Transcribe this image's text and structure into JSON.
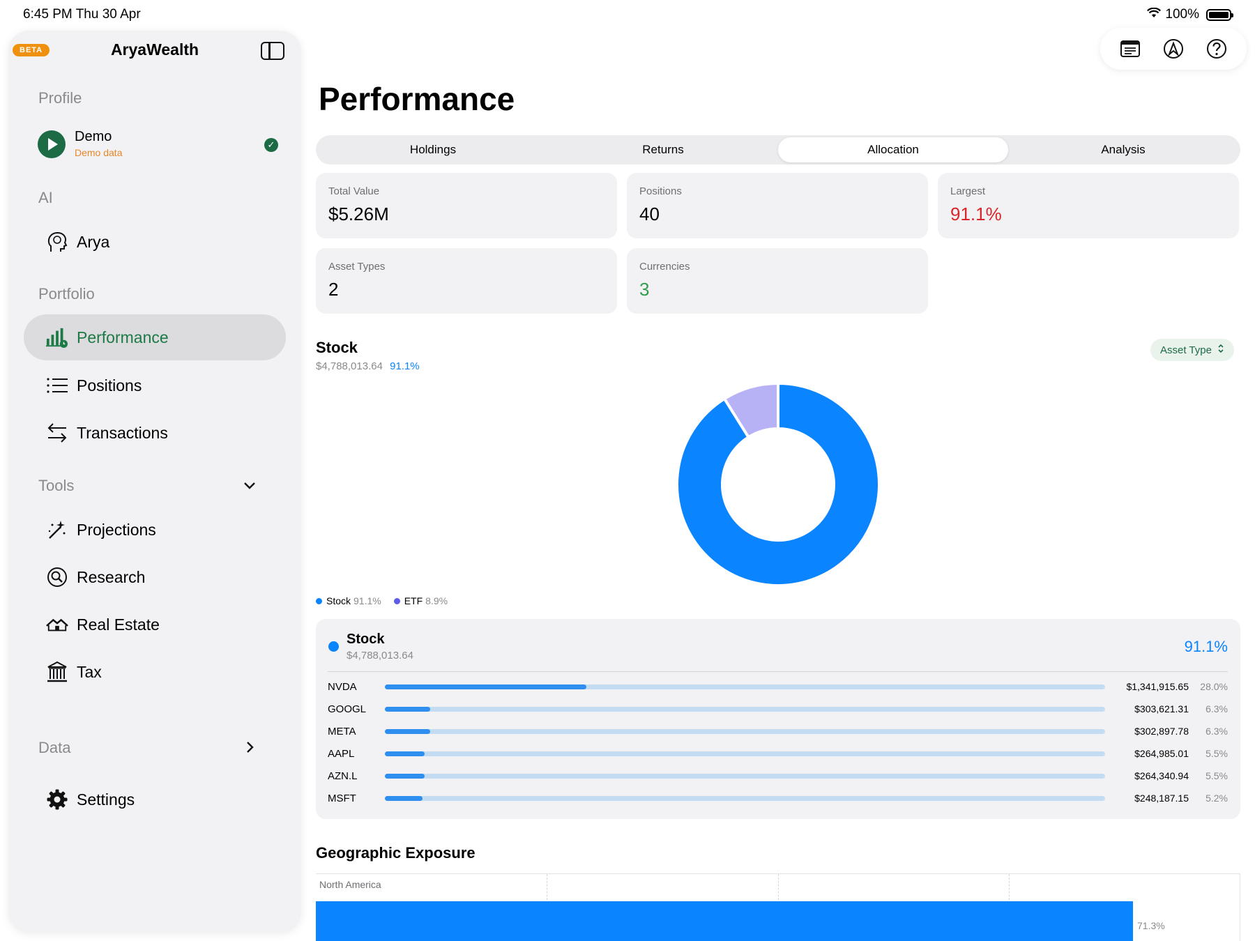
{
  "status_bar": {
    "time": "6:45 PM  Thu 30 Apr",
    "battery": "100%"
  },
  "sidebar": {
    "beta_badge": "BETA",
    "app_title": "AryaWealth",
    "sections": {
      "profile": "Profile",
      "ai": "AI",
      "portfolio": "Portfolio",
      "tools": "Tools",
      "data": "Data"
    },
    "profile": {
      "name": "Demo",
      "subtitle": "Demo data"
    },
    "ai_items": [
      {
        "label": "Arya",
        "icon": "brain-head-icon"
      }
    ],
    "portfolio_items": [
      {
        "label": "Performance",
        "icon": "chart-bars-icon",
        "active": true
      },
      {
        "label": "Positions",
        "icon": "list-icon"
      },
      {
        "label": "Transactions",
        "icon": "arrows-swap-icon"
      }
    ],
    "tool_items": [
      {
        "label": "Projections",
        "icon": "magic-wand-icon"
      },
      {
        "label": "Research",
        "icon": "magnifier-icon"
      },
      {
        "label": "Real Estate",
        "icon": "houses-icon"
      },
      {
        "label": "Tax",
        "icon": "bank-icon"
      }
    ],
    "settings": {
      "label": "Settings",
      "icon": "gear-icon"
    }
  },
  "toolbar": {
    "icons": [
      "notes-icon",
      "compass-a-icon",
      "help-icon"
    ]
  },
  "main": {
    "title": "Performance",
    "tabs": [
      {
        "label": "Holdings"
      },
      {
        "label": "Returns"
      },
      {
        "label": "Allocation",
        "active": true
      },
      {
        "label": "Analysis"
      }
    ],
    "cards": [
      {
        "label": "Total Value",
        "value": "$5.26M",
        "color": "#000000"
      },
      {
        "label": "Positions",
        "value": "40",
        "color": "#000000"
      },
      {
        "label": "Largest",
        "value": "91.1%",
        "color": "#d9262b"
      },
      {
        "label": "Asset Types",
        "value": "2",
        "color": "#000000"
      },
      {
        "label": "Currencies",
        "value": "3",
        "color": "#2f9e4f"
      }
    ],
    "stock": {
      "title": "Stock",
      "amount": "$4,788,013.64",
      "pct": "91.1%"
    },
    "asset_type_button": "Asset Type",
    "legend": [
      {
        "name": "Stock",
        "pct": "91.1%",
        "color": "#0a84ff"
      },
      {
        "name": "ETF",
        "pct": "8.9%",
        "color": "#5e5ce6"
      }
    ],
    "breakdown": {
      "title": "Stock",
      "amount": "$4,788,013.64",
      "pct": "91.1%",
      "rows": [
        {
          "ticker": "NVDA",
          "value": "$1,341,915.65",
          "pct": "28.0%",
          "share": 0.28
        },
        {
          "ticker": "GOOGL",
          "value": "$303,621.31",
          "pct": "6.3%",
          "share": 0.063
        },
        {
          "ticker": "META",
          "value": "$302,897.78",
          "pct": "6.3%",
          "share": 0.063
        },
        {
          "ticker": "AAPL",
          "value": "$264,985.01",
          "pct": "5.5%",
          "share": 0.055
        },
        {
          "ticker": "AZN.L",
          "value": "$264,340.94",
          "pct": "5.5%",
          "share": 0.055
        },
        {
          "ticker": "MSFT",
          "value": "$248,187.15",
          "pct": "5.2%",
          "share": 0.052
        }
      ]
    },
    "geo": {
      "title": "Geographic Exposure",
      "region": "North America",
      "pct": "71.3%",
      "share": 0.713
    }
  },
  "chart_data": {
    "type": "pie",
    "categories": [
      "Stock",
      "ETF"
    ],
    "values": [
      91.1,
      8.9
    ],
    "colors": [
      "#0a84ff",
      "#b7b2f6"
    ],
    "legend": "bottom-left"
  }
}
